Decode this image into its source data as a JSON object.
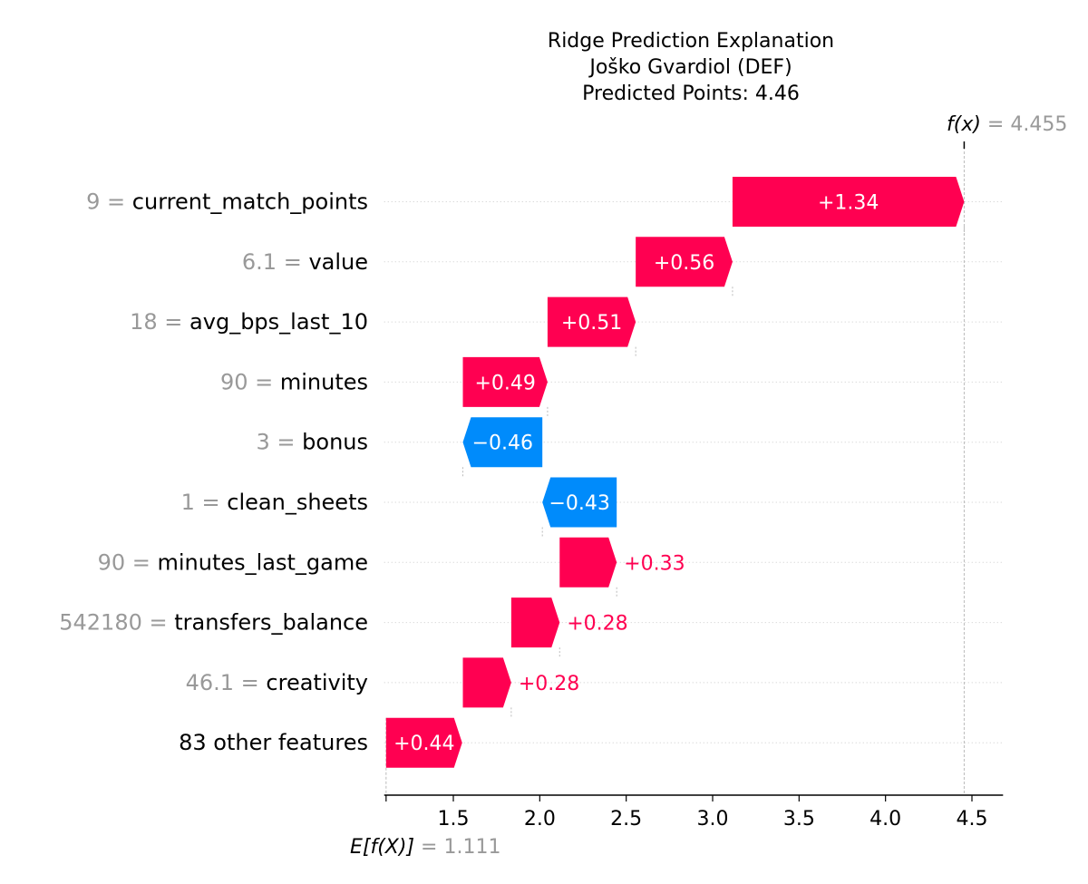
{
  "chart_data": {
    "type": "waterfall",
    "title_lines": [
      "Ridge Prediction Explanation",
      "Joško Gvardiol (DEF)",
      "Predicted Points: 4.46"
    ],
    "base_value": 1.111,
    "base_label": "E[f(X)]",
    "base_value_text": "1.111",
    "final_value": 4.455,
    "final_label": "f(x)",
    "final_value_text": "4.455",
    "xlim": [
      1.1,
      4.68
    ],
    "xticks": [
      1.5,
      2.0,
      2.5,
      3.0,
      3.5,
      4.0,
      4.5
    ],
    "xtick_labels": [
      "1.5",
      "2.0",
      "2.5",
      "3.0",
      "3.5",
      "4.0",
      "4.5"
    ],
    "features": [
      {
        "value": "9",
        "name": "current_match_points",
        "contribution": 1.34,
        "label": "+1.34",
        "start": 3.115
      },
      {
        "value": "6.1",
        "name": "value",
        "contribution": 0.56,
        "label": "+0.56",
        "start": 2.555
      },
      {
        "value": "18",
        "name": "avg_bps_last_10",
        "contribution": 0.51,
        "label": "+0.51",
        "start": 2.045
      },
      {
        "value": "90",
        "name": "minutes",
        "contribution": 0.49,
        "label": "+0.49",
        "start": 1.555
      },
      {
        "value": "3",
        "name": "bonus",
        "contribution": -0.46,
        "label": "−0.46",
        "start": 2.015
      },
      {
        "value": "1",
        "name": "clean_sheets",
        "contribution": -0.43,
        "label": "−0.43",
        "start": 2.445
      },
      {
        "value": "90",
        "name": "minutes_last_game",
        "contribution": 0.33,
        "label": "+0.33",
        "start": 2.115
      },
      {
        "value": "542180",
        "name": "transfers_balance",
        "contribution": 0.28,
        "label": "+0.28",
        "start": 1.835
      },
      {
        "value": "46.1",
        "name": "creativity",
        "contribution": 0.28,
        "label": "+0.28",
        "start": 1.555
      },
      {
        "value": "",
        "name": "83 other features",
        "contribution": 0.44,
        "label": "+0.44",
        "start": 1.111
      }
    ],
    "colors": {
      "positive": "#ff0051",
      "negative": "#008bfb",
      "muted": "#999999",
      "text": "#000000"
    }
  }
}
